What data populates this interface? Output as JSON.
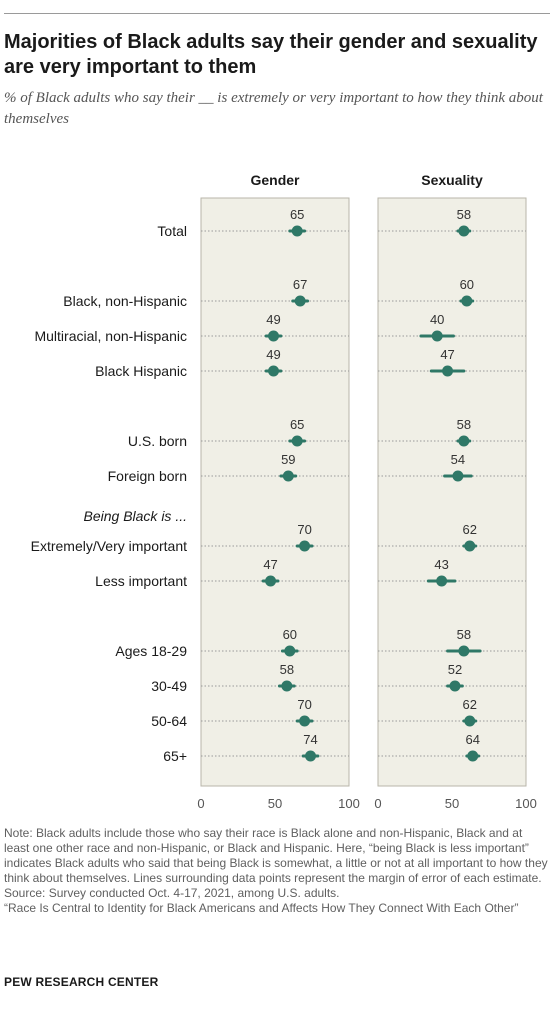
{
  "title": "Majorities of Black adults say their gender and sexuality are very important to them",
  "subtitle": "% of Black adults who say their __ is extremely or very important to how they think about themselves",
  "chart_data": {
    "type": "scatter",
    "panels": [
      {
        "name": "Gender",
        "values": [
          65,
          67,
          49,
          49,
          65,
          59,
          70,
          47,
          60,
          58,
          70,
          74
        ],
        "moe": [
          5,
          5,
          5,
          5,
          5,
          5,
          5,
          5,
          5,
          5,
          5,
          5
        ]
      },
      {
        "name": "Sexuality",
        "values": [
          58,
          60,
          40,
          47,
          58,
          54,
          62,
          43,
          58,
          52,
          62,
          64
        ],
        "moe": [
          4,
          4,
          11,
          11,
          4,
          9,
          4,
          9,
          11,
          5,
          4,
          4
        ]
      }
    ],
    "rows": [
      {
        "label": "Total",
        "group": 0
      },
      {
        "label": "Black, non-Hispanic",
        "group": 1
      },
      {
        "label": "Multiracial, non-Hispanic",
        "group": 1
      },
      {
        "label": "Black Hispanic",
        "group": 1
      },
      {
        "label": "U.S. born",
        "group": 2
      },
      {
        "label": "Foreign born",
        "group": 2
      },
      {
        "label": "Extremely/Very important",
        "group": 3
      },
      {
        "label": "Less important",
        "group": 3
      },
      {
        "label": "Ages 18-29",
        "group": 4
      },
      {
        "label": "30-49",
        "group": 4
      },
      {
        "label": "50-64",
        "group": 4
      },
      {
        "label": "65+",
        "group": 4
      }
    ],
    "section_headers": [
      {
        "label": "Being Black is ...",
        "before_row": 6
      }
    ],
    "xlim": [
      0,
      100
    ],
    "xticks": [
      0,
      50,
      100
    ],
    "xlabel": "",
    "ylabel": "",
    "colors": {
      "dot": "#2f7867",
      "panel": "#f0efe6",
      "panel_border": "#b8b6aa",
      "guide": "#9a9a9a"
    }
  },
  "notes": {
    "note": "Note: Black adults include those who say their race is Black alone and non-Hispanic, Black and at least one other race and non-Hispanic, or Black and Hispanic. Here, “being Black is less important” indicates Black adults who said that being Black is somewhat, a little or not at all important to how they think about themselves. Lines surrounding data points represent the margin of error of each estimate.",
    "source": "Source: Survey conducted Oct. 4-17, 2021, among U.S. adults.",
    "report": "“Race Is Central to Identity for Black Americans and Affects How They Connect With Each Other”"
  },
  "footer": "PEW RESEARCH CENTER"
}
